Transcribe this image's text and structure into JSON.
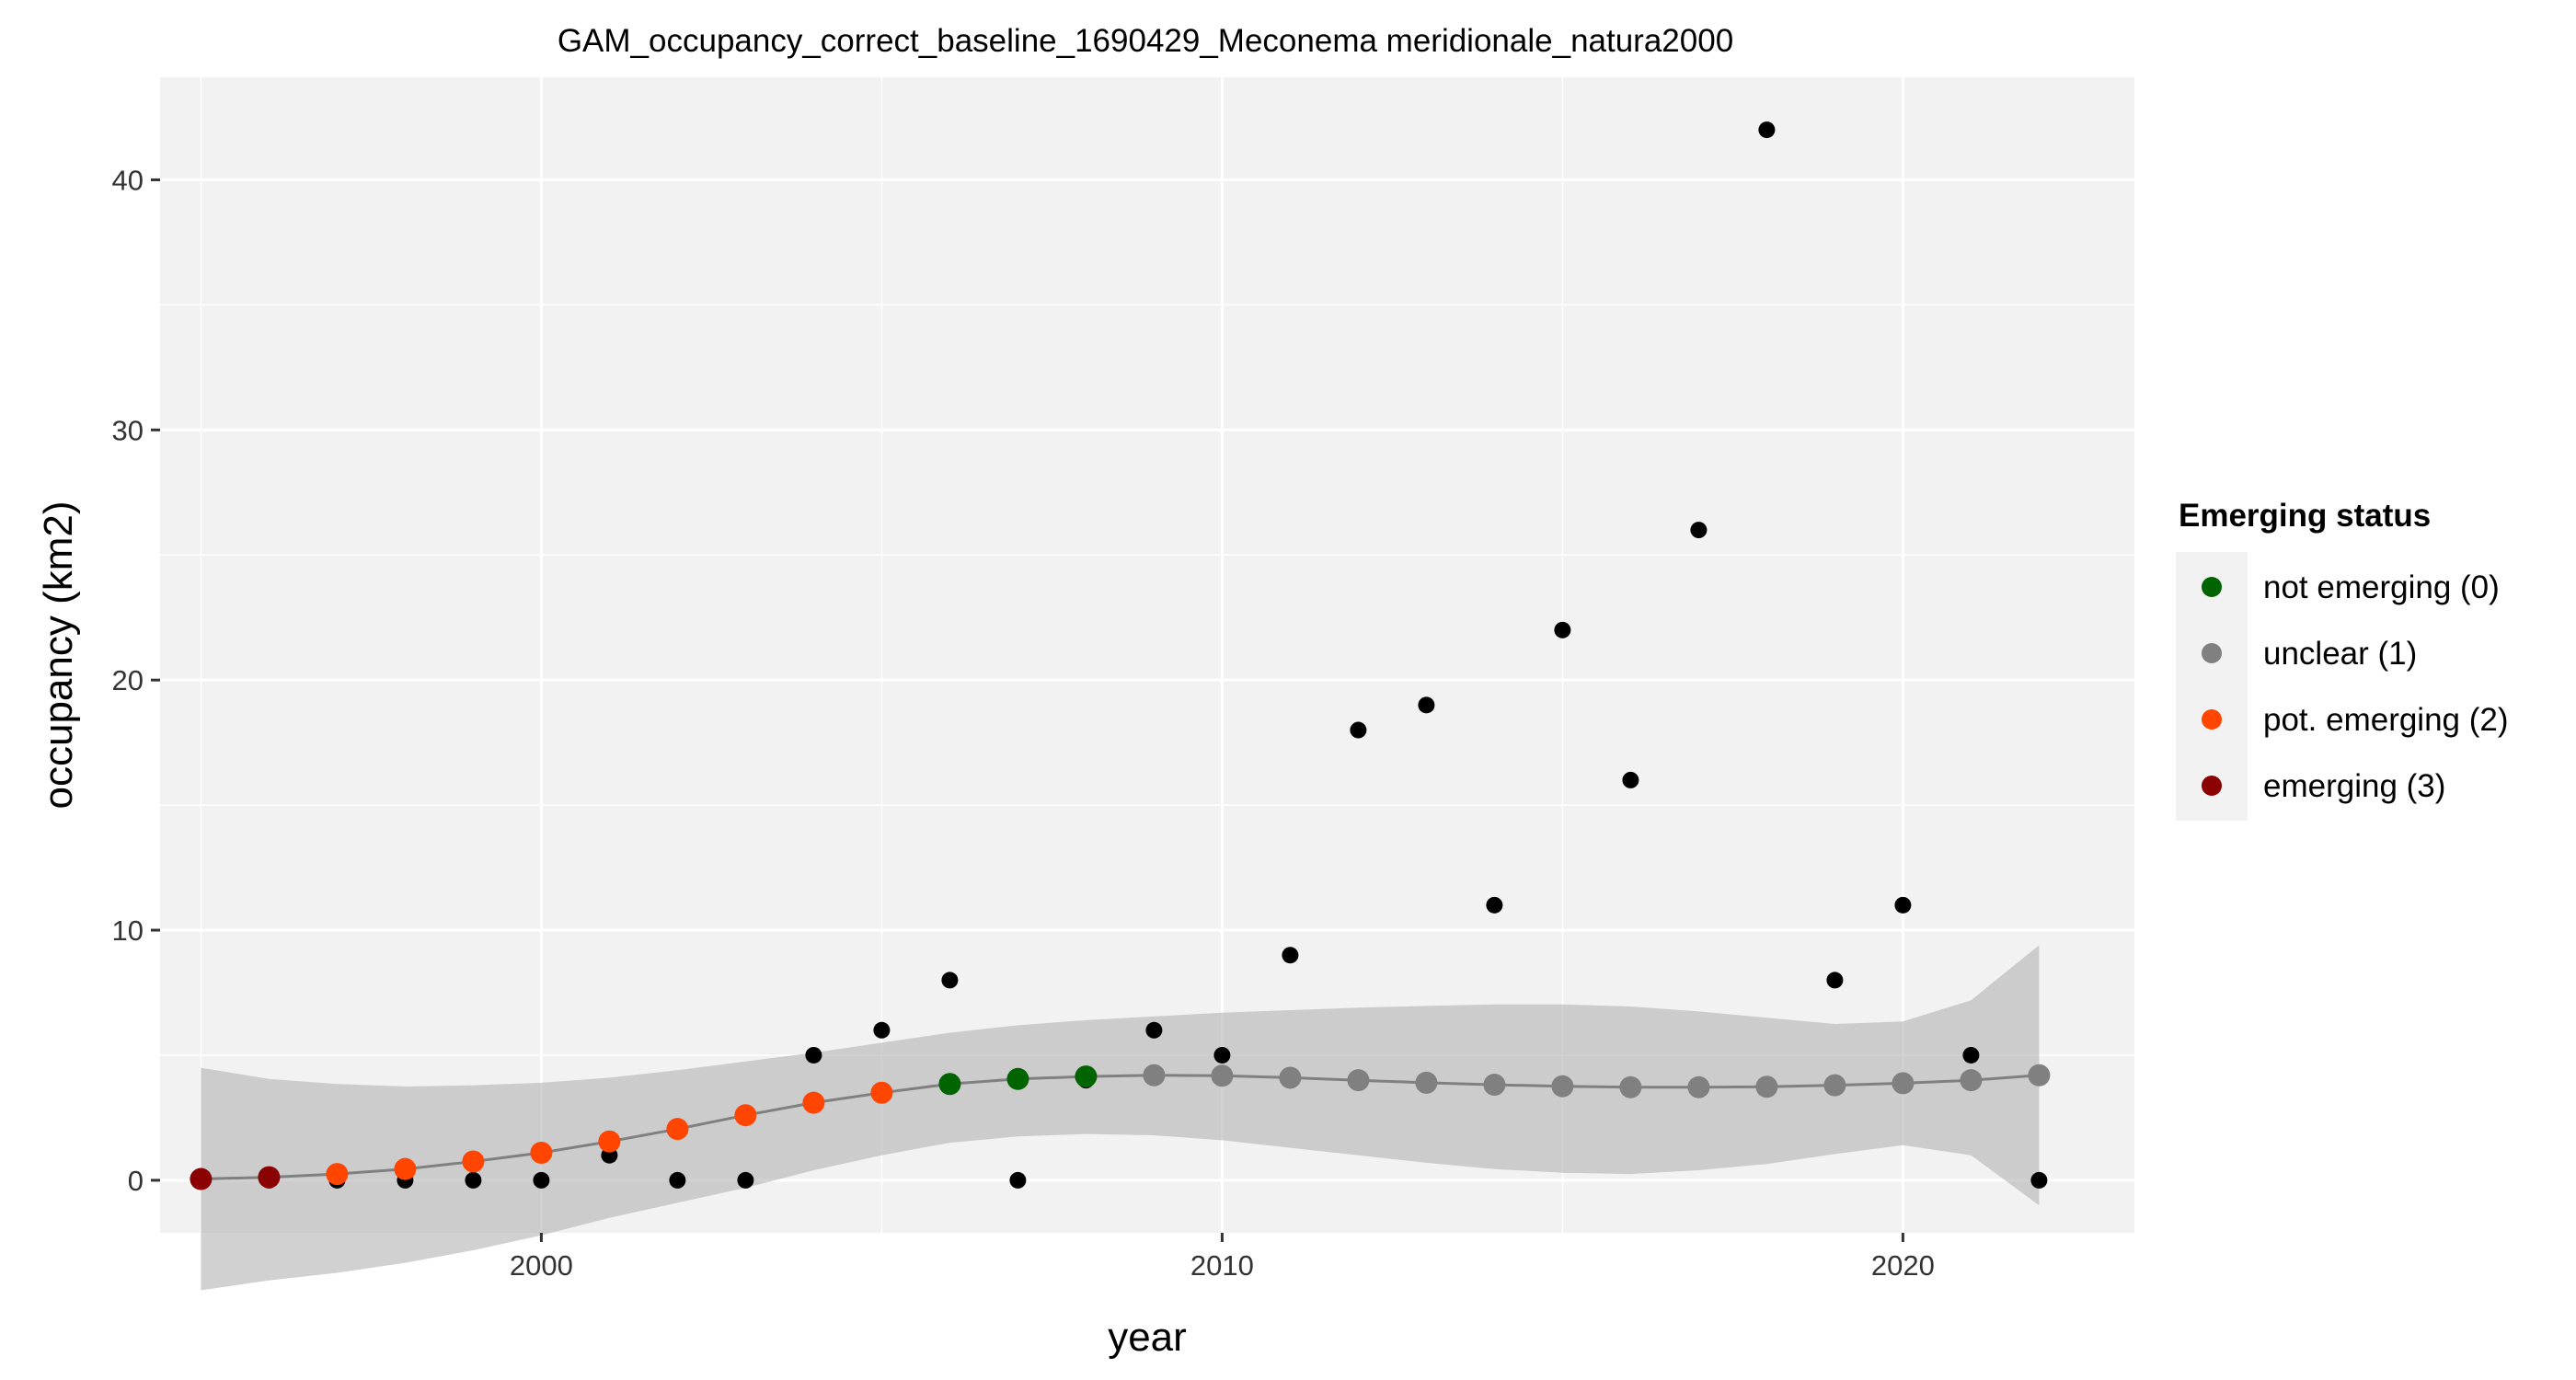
{
  "chart_data": {
    "type": "scatter",
    "title": "GAM_occupancy_correct_baseline_1690429_Meconema meridionale_natura2000",
    "xlabel": "year",
    "ylabel": "occupancy (km2)",
    "xlim": [
      1994.4,
      2023.4
    ],
    "ylim": [
      -2.1,
      44.1
    ],
    "x_ticks": [
      2000,
      2010,
      2020
    ],
    "y_ticks": [
      0,
      10,
      20,
      30,
      40
    ],
    "grid": true,
    "legend": {
      "title": "Emerging status",
      "placement": "right",
      "entries": [
        {
          "label": "not emerging (0)",
          "color": "#006400"
        },
        {
          "label": "unclear (1)",
          "color": "#808080"
        },
        {
          "label": "pot. emerging (2)",
          "color": "#FF4500"
        },
        {
          "label": "emerging (3)",
          "color": "#8B0000"
        }
      ]
    },
    "observed": {
      "x": [
        1995,
        1996,
        1997,
        1998,
        1999,
        2000,
        2001,
        2002,
        2003,
        2004,
        2005,
        2006,
        2007,
        2008,
        2009,
        2010,
        2011,
        2012,
        2013,
        2014,
        2015,
        2016,
        2017,
        2018,
        2019,
        2020,
        2021,
        2022
      ],
      "y": [
        0,
        0,
        0,
        0,
        0,
        0,
        1,
        0,
        0,
        5,
        6,
        8,
        0,
        4,
        6,
        5,
        9,
        18,
        19,
        11,
        22,
        16,
        26,
        42,
        8,
        11,
        5,
        0
      ],
      "color": "#000000"
    },
    "fitted": {
      "x": [
        1995,
        1996,
        1997,
        1998,
        1999,
        2000,
        2001,
        2002,
        2003,
        2004,
        2005,
        2006,
        2007,
        2008,
        2009,
        2010,
        2011,
        2012,
        2013,
        2014,
        2015,
        2016,
        2017,
        2018,
        2019,
        2020,
        2021,
        2022
      ],
      "y": [
        0.05,
        0.12,
        0.25,
        0.45,
        0.75,
        1.1,
        1.55,
        2.05,
        2.6,
        3.1,
        3.5,
        3.85,
        4.05,
        4.15,
        4.2,
        4.18,
        4.1,
        4.0,
        3.9,
        3.82,
        3.76,
        3.72,
        3.72,
        3.74,
        3.8,
        3.88,
        4.0,
        4.2
      ],
      "status": [
        3,
        3,
        2,
        2,
        2,
        2,
        2,
        2,
        2,
        2,
        2,
        0,
        0,
        0,
        1,
        1,
        1,
        1,
        1,
        1,
        1,
        1,
        1,
        1,
        1,
        1,
        1,
        1
      ],
      "lower": [
        -4.4,
        -4.0,
        -3.7,
        -3.3,
        -2.8,
        -2.2,
        -1.5,
        -0.9,
        -0.3,
        0.4,
        1.0,
        1.5,
        1.75,
        1.85,
        1.8,
        1.6,
        1.3,
        1.0,
        0.7,
        0.45,
        0.3,
        0.25,
        0.4,
        0.65,
        1.05,
        1.4,
        1.0,
        -1.0
      ],
      "upper": [
        4.5,
        4.05,
        3.85,
        3.75,
        3.8,
        3.9,
        4.1,
        4.4,
        4.75,
        5.1,
        5.5,
        5.9,
        6.2,
        6.4,
        6.55,
        6.7,
        6.8,
        6.9,
        6.97,
        7.03,
        7.03,
        6.95,
        6.75,
        6.5,
        6.25,
        6.35,
        7.2,
        9.4
      ]
    }
  }
}
